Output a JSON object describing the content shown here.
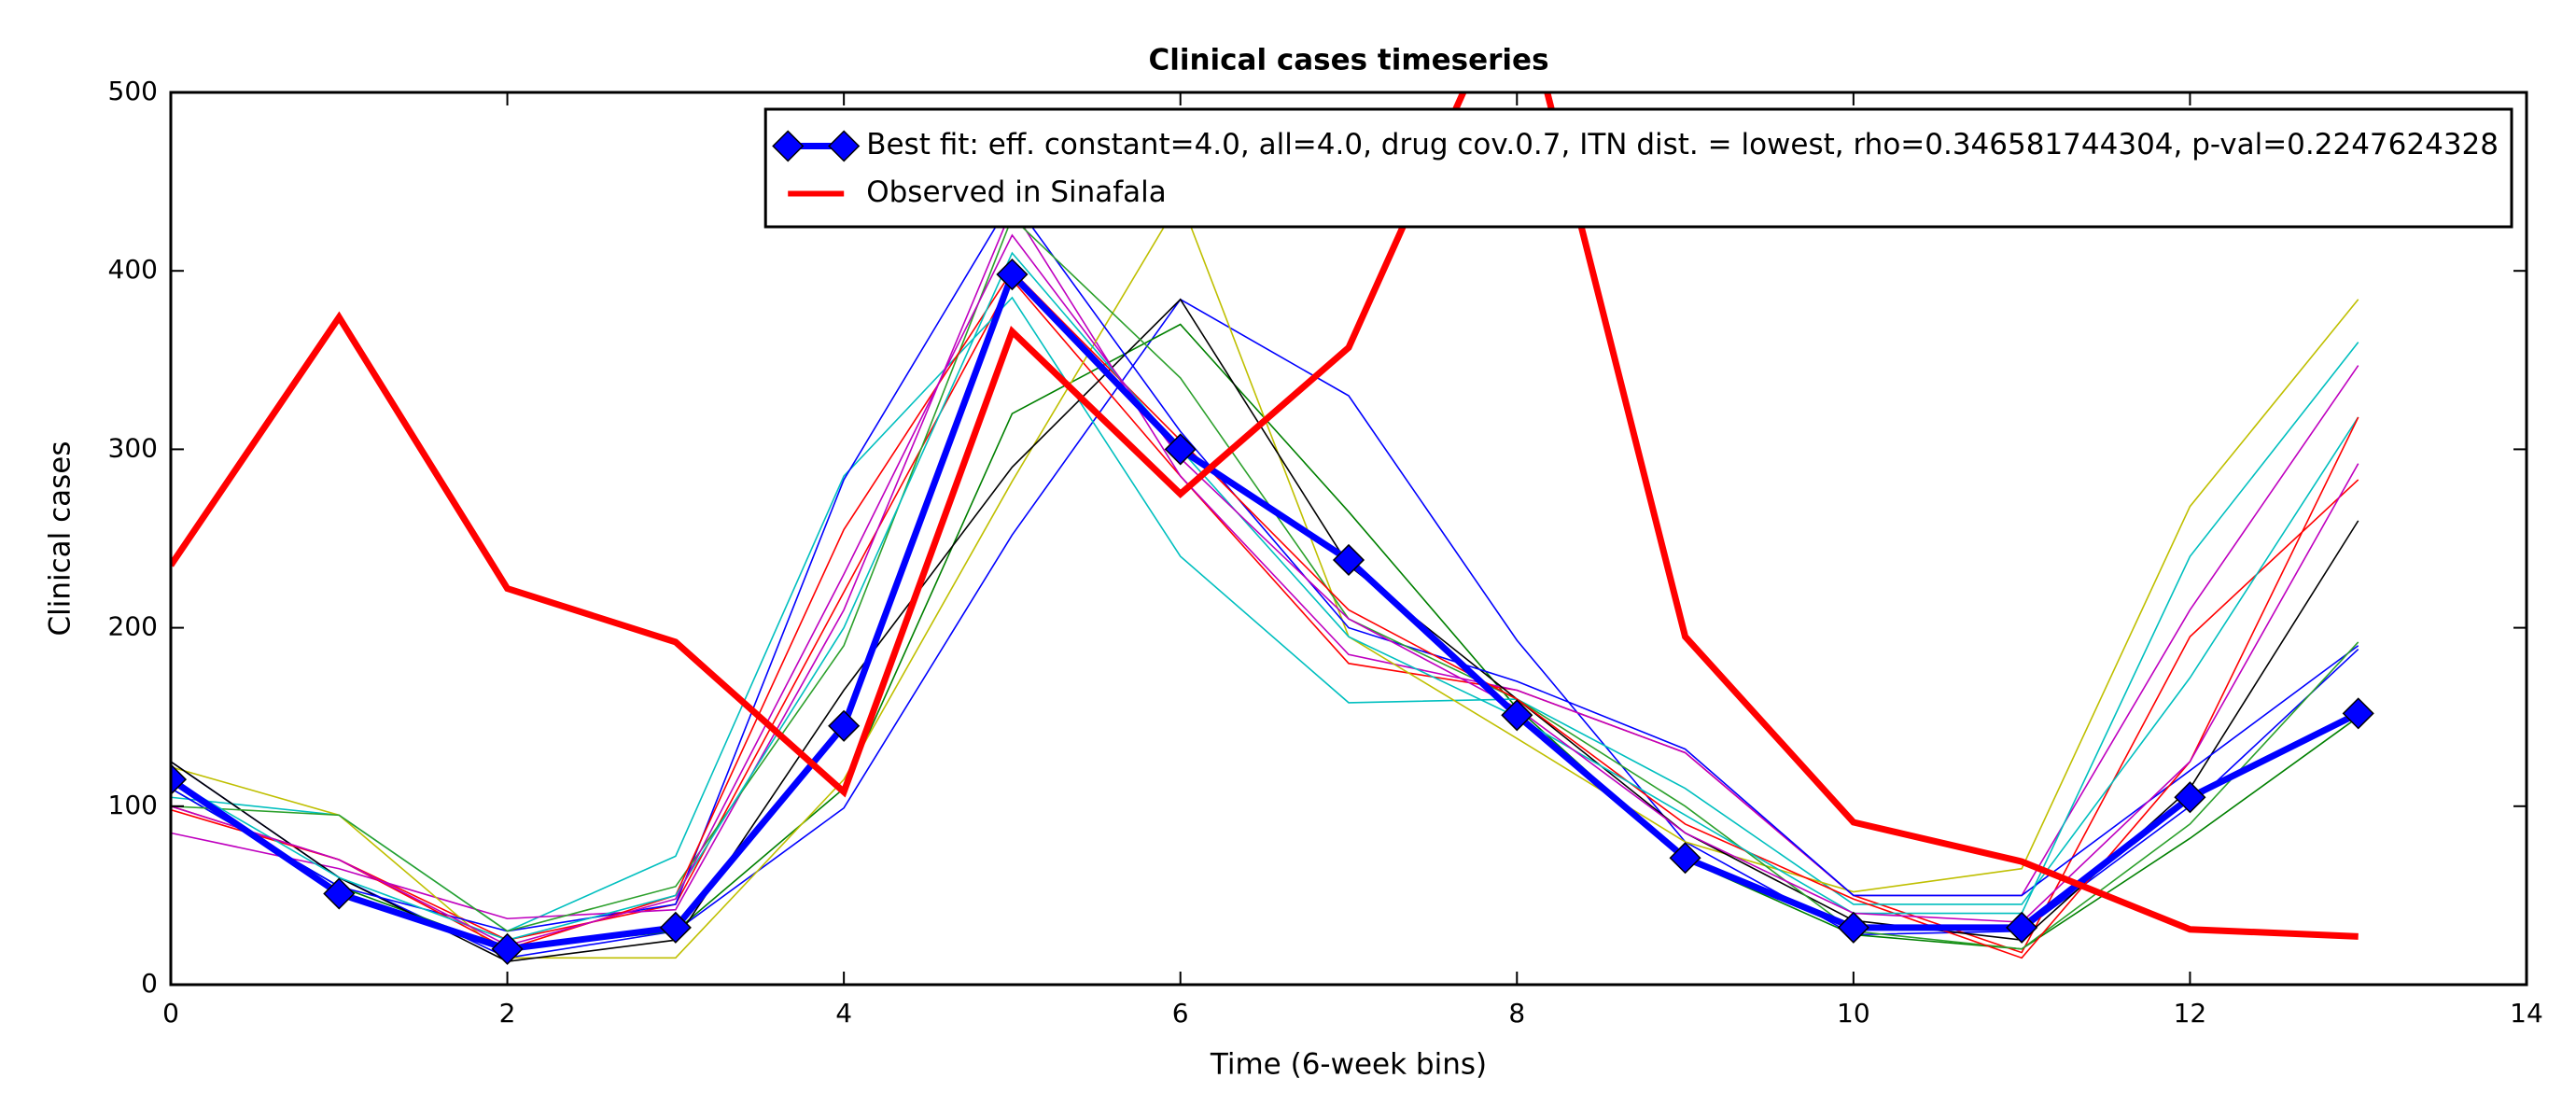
{
  "chart_data": {
    "type": "line",
    "title": "Clinical cases timeseries",
    "xlabel": "Time (6-week bins)",
    "ylabel": "Clinical cases",
    "x": [
      0,
      1,
      2,
      3,
      4,
      5,
      6,
      7,
      8,
      9,
      10,
      11,
      12,
      13
    ],
    "xlim": [
      0,
      14
    ],
    "xticks": [
      0,
      2,
      4,
      6,
      8,
      10,
      12,
      14
    ],
    "ylim": [
      0,
      500
    ],
    "yticks": [
      0,
      100,
      200,
      300,
      400,
      500
    ],
    "grid": false,
    "legend": "upper right",
    "series": [
      {
        "color": "#0000ff",
        "values": [
          125,
          60,
          15,
          30,
          99,
          252,
          384,
          330,
          193,
          80,
          28,
          30,
          100,
          188
        ]
      },
      {
        "color": "#008000",
        "values": [
          110,
          55,
          20,
          30,
          110,
          320,
          370,
          265,
          155,
          70,
          28,
          20,
          82,
          150
        ]
      },
      {
        "color": "#ff0000",
        "values": [
          100,
          70,
          25,
          45,
          220,
          395,
          285,
          180,
          165,
          130,
          50,
          18,
          195,
          283
        ]
      },
      {
        "color": "#00bfbf",
        "values": [
          105,
          95,
          30,
          72,
          285,
          385,
          240,
          158,
          160,
          110,
          45,
          45,
          172,
          318
        ]
      },
      {
        "color": "#bf00bf",
        "values": [
          85,
          65,
          37,
          42,
          210,
          435,
          285,
          185,
          165,
          130,
          50,
          50,
          210,
          347
        ]
      },
      {
        "color": "#bfbf00",
        "values": [
          122,
          95,
          15,
          15,
          115,
          282,
          440,
          195,
          138,
          80,
          52,
          65,
          268,
          384
        ]
      },
      {
        "color": "#000000",
        "values": [
          125,
          60,
          13,
          25,
          165,
          290,
          384,
          235,
          160,
          85,
          36,
          25,
          110,
          260
        ]
      },
      {
        "color": "#0000ff",
        "values": [
          110,
          55,
          30,
          45,
          283,
          440,
          310,
          200,
          170,
          132,
          50,
          50,
          120,
          190
        ]
      },
      {
        "color": "#2ca02c",
        "values": [
          100,
          95,
          30,
          55,
          190,
          430,
          340,
          205,
          160,
          100,
          30,
          20,
          90,
          192
        ]
      },
      {
        "color": "#ff0000",
        "values": [
          98,
          70,
          20,
          50,
          255,
          400,
          305,
          210,
          160,
          90,
          48,
          15,
          125,
          318
        ]
      },
      {
        "color": "#00bfbf",
        "values": [
          115,
          60,
          25,
          50,
          200,
          410,
          300,
          195,
          150,
          95,
          40,
          40,
          240,
          360
        ]
      },
      {
        "color": "#bf00bf",
        "values": [
          100,
          70,
          22,
          48,
          230,
          420,
          295,
          205,
          155,
          85,
          40,
          35,
          125,
          292
        ]
      },
      {
        "name": "Best fit: eff. constant=4.0, all=4.0, drug cov.0.7, ITN dist. = lowest, rho=0.346581744304, p-val=0.2247624328",
        "color": "#0000ff",
        "marker": "D",
        "values": [
          115,
          51,
          20,
          32,
          145,
          398,
          300,
          238,
          151,
          71,
          32,
          32,
          105,
          152
        ]
      },
      {
        "name": "Observed in Sinafala",
        "color": "#ff0000",
        "values": [
          235,
          374,
          222,
          192,
          108,
          366,
          275,
          357,
          567,
          195,
          91,
          69,
          31,
          27
        ]
      }
    ]
  }
}
